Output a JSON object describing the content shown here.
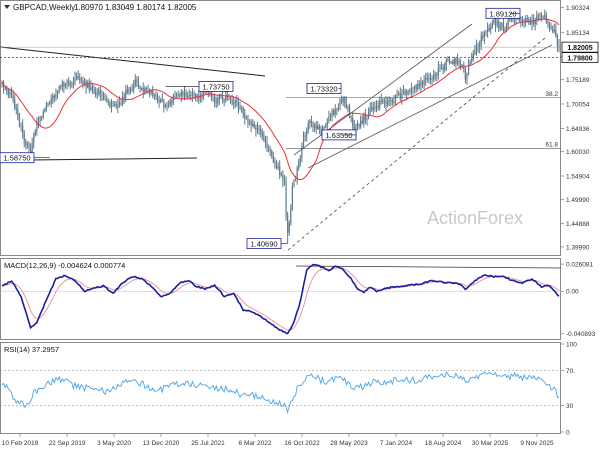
{
  "header": {
    "symbol": "GBPCAD,Weekly",
    "ohlc": "1.80970 1.83049 1.80174 1.82005"
  },
  "watermark": "ActionForex",
  "colors": {
    "candle": "#5f7a8c",
    "ma": "#e8323c",
    "trend": "#222222",
    "channel": "#555555",
    "fib": "#555555",
    "macd": "#1a1f9e",
    "signal": "#e89aa0",
    "rsi": "#4aa3e6",
    "watermark": "#c9c9c9"
  },
  "chart_data": [
    {
      "type": "candlestick",
      "name": "price",
      "ylim": [
        1.385,
        1.915
      ],
      "y_ticks": [
        1.3999,
        1.44888,
        1.4999,
        1.54904,
        1.6003,
        1.64936,
        1.70054,
        1.75189,
        1.80001,
        1.85134,
        1.90324
      ],
      "price_tags": [
        {
          "label": "1.82005",
          "value": 1.82005,
          "style": "solid"
        },
        {
          "label": "1.79800",
          "value": 1.798,
          "style": "dashed"
        }
      ],
      "x_labels": [
        "10 Feb 2019",
        "22 Sep 2019",
        "3 May 2020",
        "13 Dec 2020",
        "25 Jul 2021",
        "6 Mar 2022",
        "16 Oct 2022",
        "28 May 2023",
        "7 Jan 2024",
        "18 Aug 2024",
        "30 Mar 2025",
        "9 Nov 2025"
      ],
      "anchors": [
        [
          0,
          1.745
        ],
        [
          4,
          1.728
        ],
        [
          8,
          1.7
        ],
        [
          14,
          1.625
        ],
        [
          18,
          1.6
        ],
        [
          22,
          1.665
        ],
        [
          30,
          1.705
        ],
        [
          36,
          1.735
        ],
        [
          42,
          1.745
        ],
        [
          48,
          1.755
        ],
        [
          54,
          1.74
        ],
        [
          60,
          1.725
        ],
        [
          66,
          1.705
        ],
        [
          72,
          1.69
        ],
        [
          78,
          1.725
        ],
        [
          84,
          1.745
        ],
        [
          90,
          1.73
        ],
        [
          96,
          1.72
        ],
        [
          102,
          1.7
        ],
        [
          108,
          1.71
        ],
        [
          114,
          1.725
        ],
        [
          118,
          1.72
        ],
        [
          122,
          1.712
        ],
        [
          126,
          1.72
        ],
        [
          130,
          1.735
        ],
        [
          134,
          1.7
        ],
        [
          140,
          1.715
        ],
        [
          146,
          1.705
        ],
        [
          150,
          1.69
        ],
        [
          156,
          1.66
        ],
        [
          162,
          1.65
        ],
        [
          168,
          1.6
        ],
        [
          174,
          1.565
        ],
        [
          178,
          1.53
        ],
        [
          180,
          1.41
        ],
        [
          183,
          1.52
        ],
        [
          186,
          1.56
        ],
        [
          190,
          1.625
        ],
        [
          194,
          1.665
        ],
        [
          200,
          1.645
        ],
        [
          206,
          1.672
        ],
        [
          210,
          1.69
        ],
        [
          215,
          1.712
        ],
        [
          218,
          1.69
        ],
        [
          222,
          1.645
        ],
        [
          228,
          1.67
        ],
        [
          234,
          1.695
        ],
        [
          240,
          1.705
        ],
        [
          248,
          1.712
        ],
        [
          254,
          1.725
        ],
        [
          262,
          1.74
        ],
        [
          270,
          1.755
        ],
        [
          276,
          1.775
        ],
        [
          282,
          1.79
        ],
        [
          288,
          1.788
        ],
        [
          292,
          1.76
        ],
        [
          298,
          1.81
        ],
        [
          304,
          1.855
        ],
        [
          310,
          1.872
        ],
        [
          316,
          1.862
        ],
        [
          322,
          1.885
        ],
        [
          328,
          1.88
        ],
        [
          334,
          1.872
        ],
        [
          340,
          1.888
        ],
        [
          344,
          1.872
        ],
        [
          348,
          1.85
        ],
        [
          351,
          1.82
        ]
      ],
      "labels": [
        {
          "text": "1.73750",
          "value": 1.7375
        },
        {
          "text": "1.58750",
          "value": 1.5875
        },
        {
          "text": "1.40690",
          "value": 1.4069
        },
        {
          "text": "1.73320",
          "value": 1.7332
        },
        {
          "text": "1.63550",
          "value": 1.6355
        },
        {
          "text": "1.89120",
          "value": 1.8912
        }
      ],
      "fib_levels": [
        {
          "label": "38.2",
          "value": 1.7136
        },
        {
          "label": "61.8",
          "value": 1.6064
        }
      ]
    },
    {
      "type": "line",
      "name": "MACD(12,26,9) -0.004624 0.000774",
      "ylim": [
        -0.045,
        0.03
      ],
      "y_ticks": [
        0.026081,
        0.0,
        -0.040893
      ],
      "y_tick_labels": [
        "0.026081",
        "0.00",
        "-0.040893"
      ],
      "anchors": [
        [
          0,
          0.005
        ],
        [
          6,
          0.01
        ],
        [
          12,
          -0.005
        ],
        [
          18,
          -0.035
        ],
        [
          22,
          -0.03
        ],
        [
          28,
          -0.008
        ],
        [
          34,
          0.012
        ],
        [
          40,
          0.015
        ],
        [
          46,
          0.01
        ],
        [
          52,
          0.0
        ],
        [
          58,
          0.003
        ],
        [
          64,
          0.005
        ],
        [
          70,
          -0.002
        ],
        [
          76,
          0.008
        ],
        [
          82,
          0.014
        ],
        [
          88,
          0.012
        ],
        [
          94,
          0.005
        ],
        [
          100,
          -0.005
        ],
        [
          106,
          -0.002
        ],
        [
          112,
          0.008
        ],
        [
          118,
          0.01
        ],
        [
          122,
          0.005
        ],
        [
          128,
          0.002
        ],
        [
          134,
          0.006
        ],
        [
          140,
          -0.005
        ],
        [
          146,
          -0.002
        ],
        [
          152,
          -0.018
        ],
        [
          158,
          -0.02
        ],
        [
          164,
          -0.025
        ],
        [
          170,
          -0.032
        ],
        [
          176,
          -0.038
        ],
        [
          180,
          -0.041
        ],
        [
          184,
          -0.03
        ],
        [
          188,
          -0.01
        ],
        [
          192,
          0.02
        ],
        [
          196,
          0.026
        ],
        [
          200,
          0.024
        ],
        [
          206,
          0.02
        ],
        [
          210,
          0.024
        ],
        [
          214,
          0.022
        ],
        [
          220,
          0.012
        ],
        [
          224,
          0.002
        ],
        [
          228,
          -0.001
        ],
        [
          232,
          0.004
        ],
        [
          236,
          0.0
        ],
        [
          240,
          0.002
        ],
        [
          246,
          0.004
        ],
        [
          252,
          0.005
        ],
        [
          258,
          0.006
        ],
        [
          264,
          0.007
        ],
        [
          270,
          0.01
        ],
        [
          276,
          0.009
        ],
        [
          282,
          0.008
        ],
        [
          288,
          0.007
        ],
        [
          292,
          0.002
        ],
        [
          298,
          0.01
        ],
        [
          304,
          0.016
        ],
        [
          310,
          0.014
        ],
        [
          316,
          0.014
        ],
        [
          322,
          0.01
        ],
        [
          328,
          0.008
        ],
        [
          334,
          0.012
        ],
        [
          340,
          0.004
        ],
        [
          344,
          0.006
        ],
        [
          348,
          0.0
        ],
        [
          351,
          -0.0046
        ]
      ]
    },
    {
      "type": "line",
      "name": "RSI(14) 37.2957",
      "ylim": [
        0,
        100
      ],
      "y_ticks": [
        100,
        70,
        30,
        0
      ],
      "y_tick_labels": [
        "100",
        "70.",
        "30",
        "0"
      ],
      "anchors": [
        [
          0,
          55
        ],
        [
          4,
          50
        ],
        [
          8,
          38
        ],
        [
          12,
          32
        ],
        [
          16,
          30
        ],
        [
          20,
          45
        ],
        [
          26,
          52
        ],
        [
          30,
          55
        ],
        [
          34,
          60
        ],
        [
          40,
          58
        ],
        [
          46,
          52
        ],
        [
          52,
          50
        ],
        [
          58,
          48
        ],
        [
          64,
          46
        ],
        [
          70,
          50
        ],
        [
          76,
          55
        ],
        [
          82,
          58
        ],
        [
          88,
          55
        ],
        [
          94,
          50
        ],
        [
          100,
          48
        ],
        [
          106,
          52
        ],
        [
          112,
          56
        ],
        [
          118,
          55
        ],
        [
          124,
          52
        ],
        [
          130,
          54
        ],
        [
          136,
          48
        ],
        [
          142,
          50
        ],
        [
          148,
          45
        ],
        [
          154,
          40
        ],
        [
          160,
          42
        ],
        [
          166,
          38
        ],
        [
          170,
          36
        ],
        [
          174,
          34
        ],
        [
          178,
          32
        ],
        [
          180,
          25
        ],
        [
          182,
          34
        ],
        [
          186,
          48
        ],
        [
          190,
          60
        ],
        [
          194,
          66
        ],
        [
          198,
          62
        ],
        [
          204,
          56
        ],
        [
          210,
          60
        ],
        [
          214,
          62
        ],
        [
          218,
          55
        ],
        [
          222,
          48
        ],
        [
          228,
          52
        ],
        [
          234,
          56
        ],
        [
          240,
          56
        ],
        [
          246,
          58
        ],
        [
          252,
          60
        ],
        [
          258,
          58
        ],
        [
          264,
          60
        ],
        [
          270,
          62
        ],
        [
          276,
          64
        ],
        [
          282,
          66
        ],
        [
          288,
          62
        ],
        [
          292,
          58
        ],
        [
          298,
          62
        ],
        [
          304,
          68
        ],
        [
          310,
          66
        ],
        [
          316,
          62
        ],
        [
          322,
          64
        ],
        [
          328,
          62
        ],
        [
          334,
          60
        ],
        [
          340,
          60
        ],
        [
          344,
          56
        ],
        [
          348,
          48
        ],
        [
          351,
          37
        ]
      ]
    }
  ]
}
